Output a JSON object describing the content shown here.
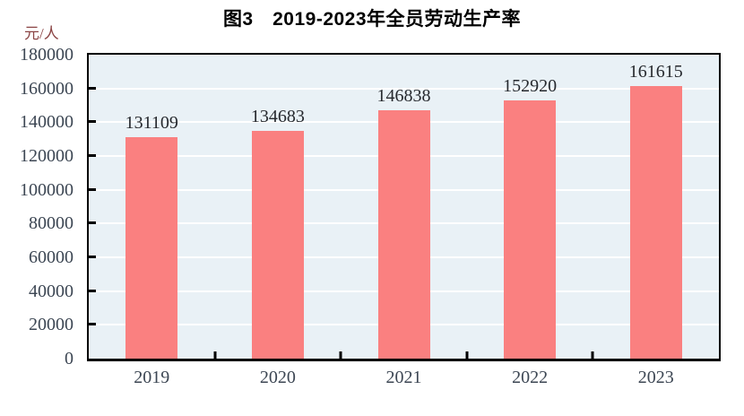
{
  "colors": {
    "bar": "#FA8080",
    "plot_background": "#E9F1F6",
    "gridline": "#FFFFFF",
    "axis": "#000000",
    "tick_label": "#3C4653",
    "value_label": "#26292E",
    "title": "#000000",
    "unit_label": "#8B4545"
  },
  "chart_data": {
    "type": "bar",
    "title": "图3　2019-2023年全员劳动生产率",
    "unit_label": "元/人",
    "categories": [
      "2019",
      "2020",
      "2021",
      "2022",
      "2023"
    ],
    "values": [
      131109,
      134683,
      146838,
      152920,
      161615
    ],
    "value_labels": [
      "131109",
      "134683",
      "146838",
      "152920",
      "161615"
    ],
    "xlabel": "",
    "ylabel": "元/人",
    "ylim": [
      0,
      180000
    ],
    "yticks": [
      0,
      20000,
      40000,
      60000,
      80000,
      100000,
      120000,
      140000,
      160000,
      180000
    ],
    "grid": true,
    "gridline_orientation": "horizontal",
    "legend_position": "none",
    "bar_labels_position": "above"
  }
}
